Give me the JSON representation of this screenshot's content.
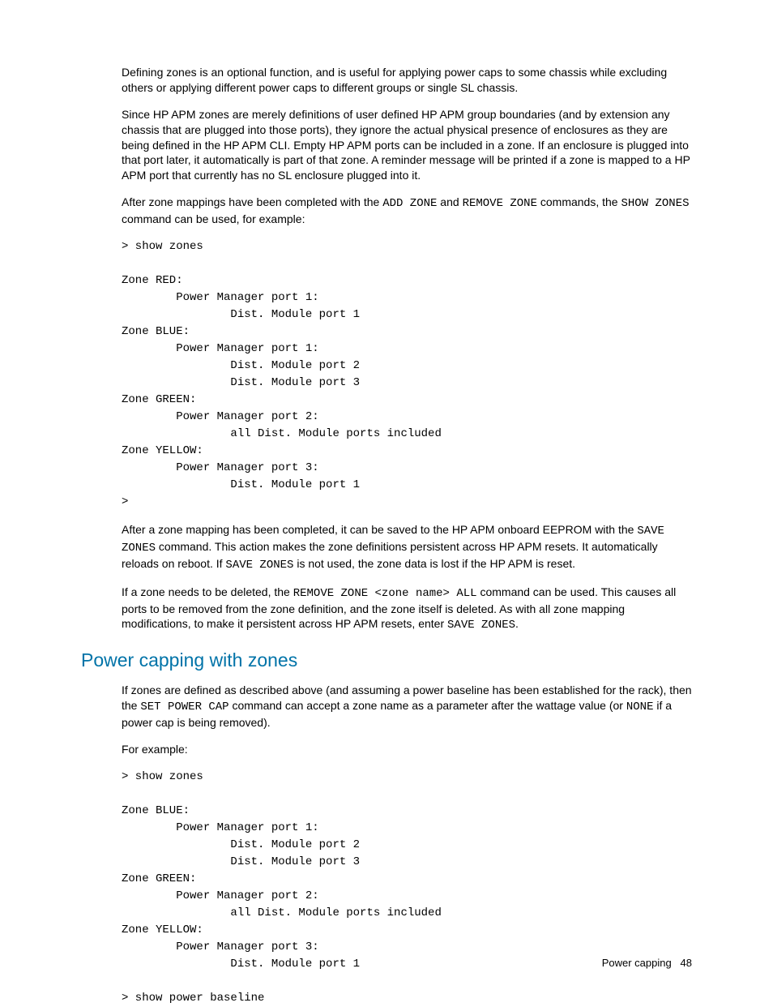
{
  "para1": "Defining zones is an optional function, and is useful for applying power caps to some chassis while excluding others or applying different power caps to different groups or single SL chassis.",
  "para2": "Since HP APM zones are merely definitions of user defined HP APM group boundaries (and by extension any chassis that are plugged into those ports), they ignore the actual physical presence of enclosures as they are being defined in the HP APM CLI. Empty HP APM ports can be included in a zone. If an enclosure is plugged into that port later, it automatically is part of that zone. A reminder message will be printed if a zone is mapped to a HP APM port that currently has no SL enclosure plugged into it.",
  "para3_part1": "After zone mappings have been completed with the ",
  "para3_code1": "ADD ZONE",
  "para3_part2": " and ",
  "para3_code2": "REMOVE ZONE",
  "para3_part3": " commands, the ",
  "para3_code3": "SHOW ZONES",
  "para3_part4": " command can be used, for example:",
  "code1": "> show zones\n\nZone RED:\n        Power Manager port 1:\n                Dist. Module port 1\nZone BLUE:\n        Power Manager port 1:\n                Dist. Module port 2\n                Dist. Module port 3\nZone GREEN:\n        Power Manager port 2:\n                all Dist. Module ports included\nZone YELLOW:\n        Power Manager port 3:\n                Dist. Module port 1\n>",
  "para4_part1": "After a zone mapping has been completed, it can be saved to the HP APM onboard EEPROM with the ",
  "para4_code1": "SAVE ZONES",
  "para4_part2": " command. This action makes the zone definitions persistent across HP APM resets. It automatically reloads on reboot. If ",
  "para4_code2": "SAVE ZONES",
  "para4_part3": " is not used, the zone data is lost if the HP APM is reset.",
  "para5_part1": "If a zone needs to be deleted, the ",
  "para5_code1": "REMOVE ZONE <zone name> ALL",
  "para5_part2": " command can be used. This causes all ports to be removed from the zone definition, and the zone itself is deleted. As with all zone mapping modifications, to make it persistent across HP APM resets, enter ",
  "para5_code2": "SAVE ZONES",
  "para5_part3": ".",
  "heading": "Power capping with zones",
  "para6_part1": "If zones are defined as described above (and assuming a power baseline has been established for the rack), then the ",
  "para6_code1": "SET POWER CAP",
  "para6_part2": " command can accept a zone name as a parameter after the wattage value (or ",
  "para6_code2": "NONE",
  "para6_part3": " if a power cap is being removed).",
  "para7": "For example:",
  "code2": "> show zones\n\nZone BLUE:\n        Power Manager port 1:\n                Dist. Module port 2\n                Dist. Module port 3\nZone GREEN:\n        Power Manager port 2:\n                all Dist. Module ports included\nZone YELLOW:\n        Power Manager port 3:\n                Dist. Module port 1\n\n> show power baseline",
  "footer_text": "Power capping",
  "footer_page": "48"
}
